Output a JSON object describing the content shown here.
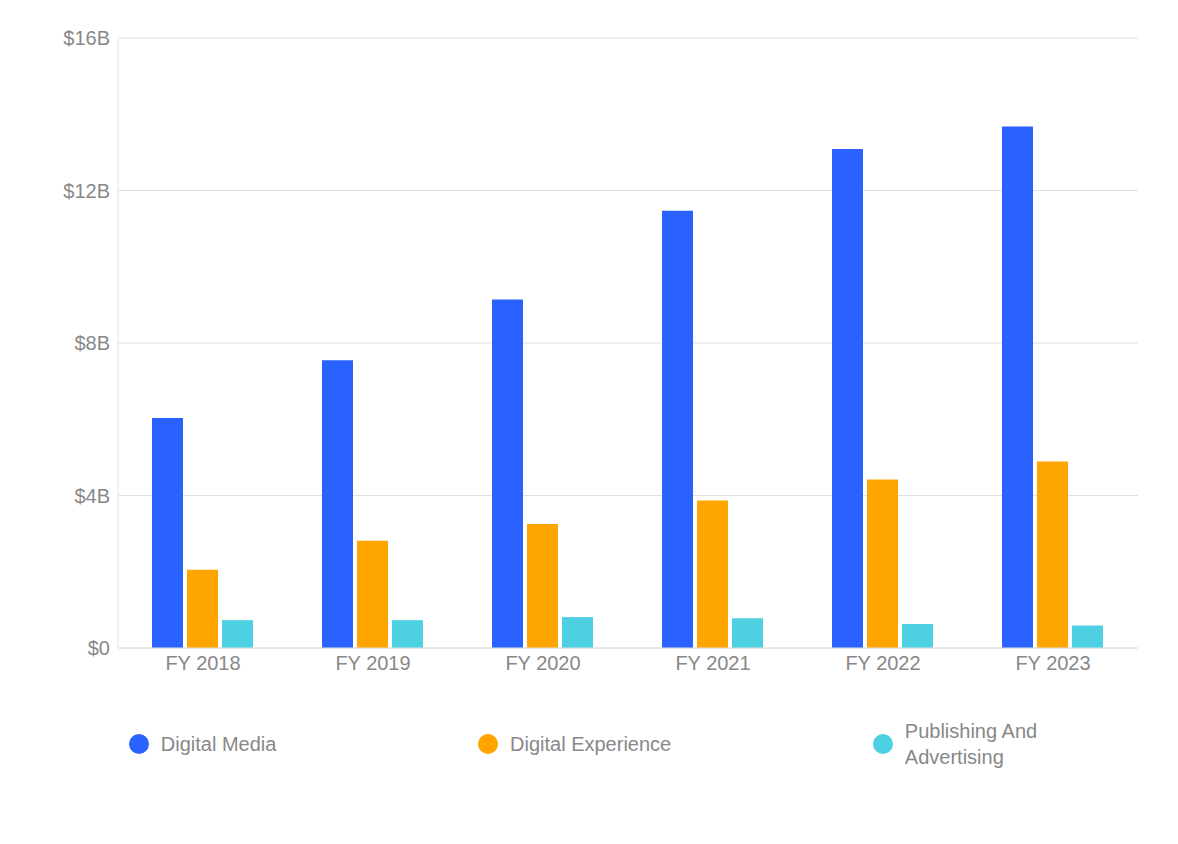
{
  "chart_data": {
    "type": "bar",
    "categories": [
      "FY 2018",
      "FY 2019",
      "FY 2020",
      "FY 2021",
      "FY 2022",
      "FY 2023"
    ],
    "series": [
      {
        "name": "Digital Media",
        "color": "#2962FF",
        "values": [
          6.03,
          7.55,
          9.14,
          11.47,
          13.09,
          13.68
        ]
      },
      {
        "name": "Digital Experience",
        "color": "#FFA500",
        "values": [
          2.05,
          2.81,
          3.25,
          3.87,
          4.42,
          4.89
        ]
      },
      {
        "name": "Publishing And\nAdvertising",
        "color": "#4DD0E1",
        "values": [
          0.73,
          0.73,
          0.81,
          0.78,
          0.63,
          0.59
        ]
      }
    ],
    "ylim": [
      0,
      16
    ],
    "yticks": [
      {
        "value": 0,
        "label": "$0"
      },
      {
        "value": 4,
        "label": "$4B"
      },
      {
        "value": 8,
        "label": "$8B"
      },
      {
        "value": 12,
        "label": "$12B"
      },
      {
        "value": 16,
        "label": "$16B"
      }
    ],
    "grid": true,
    "legend": "bottom"
  }
}
